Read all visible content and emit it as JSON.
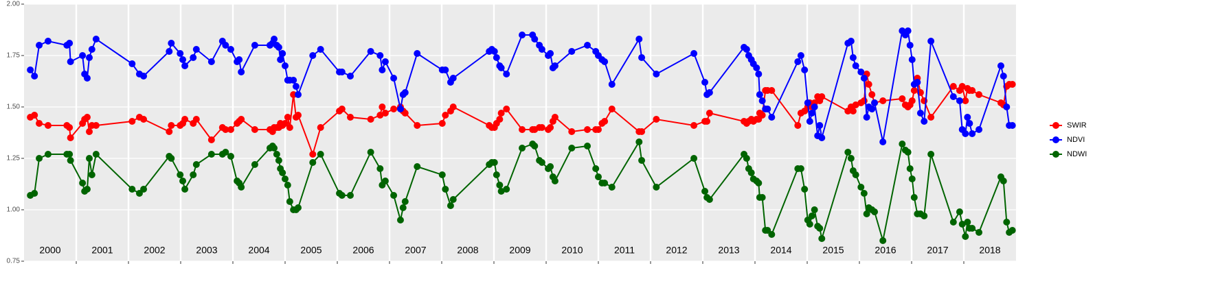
{
  "chart_data": {
    "type": "line",
    "year_labels": [
      "2000",
      "2001",
      "2002",
      "2003",
      "2004",
      "2005",
      "2006",
      "2007",
      "2008",
      "2009",
      "2010",
      "2011",
      "2012",
      "2013",
      "2014",
      "2015",
      "2016",
      "2017",
      "2018"
    ],
    "x": [
      2000.12,
      2000.2,
      2000.29,
      2000.46,
      2000.82,
      2000.87,
      2000.89,
      2001.12,
      2001.16,
      2001.21,
      2001.25,
      2001.3,
      2001.38,
      2002.07,
      2002.21,
      2002.29,
      2002.78,
      2002.82,
      2002.99,
      2003.04,
      2003.08,
      2003.24,
      2003.3,
      2003.59,
      2003.8,
      2003.86,
      2003.96,
      2004.08,
      2004.12,
      2004.16,
      2004.42,
      2004.71,
      2004.76,
      2004.79,
      2004.84,
      2004.88,
      2004.91,
      2004.95,
      2005.0,
      2005.05,
      2005.09,
      2005.16,
      2005.21,
      2005.25,
      2005.53,
      2005.68,
      2006.04,
      2006.09,
      2006.25,
      2006.64,
      2006.82,
      2006.86,
      2006.92,
      2007.08,
      2007.21,
      2007.26,
      2007.3,
      2007.53,
      2008.01,
      2008.07,
      2008.17,
      2008.22,
      2008.91,
      2008.96,
      2009.01,
      2009.05,
      2009.11,
      2009.14,
      2009.24,
      2009.54,
      2009.74,
      2009.78,
      2009.87,
      2009.92,
      2010.04,
      2010.08,
      2010.13,
      2010.17,
      2010.49,
      2010.79,
      2010.95,
      2011.0,
      2011.07,
      2011.12,
      2011.26,
      2011.78,
      2011.83,
      2012.11,
      2012.83,
      2013.04,
      2013.08,
      2013.13,
      2013.79,
      2013.84,
      2013.88,
      2013.93,
      2013.97,
      2014.03,
      2014.07,
      2014.09,
      2014.14,
      2014.2,
      2014.24,
      2014.32,
      2014.82,
      2014.88,
      2014.95,
      2015.01,
      2015.05,
      2015.09,
      2015.14,
      2015.2,
      2015.24,
      2015.28,
      2015.78,
      2015.84,
      2015.88,
      2015.93,
      2016.03,
      2016.09,
      2016.14,
      2016.18,
      2016.24,
      2016.29,
      2016.45,
      2016.82,
      2016.88,
      2016.93,
      2016.97,
      2017.01,
      2017.05,
      2017.11,
      2017.17,
      2017.24,
      2017.37,
      2017.8,
      2017.92,
      2017.97,
      2018.03,
      2018.07,
      2018.11,
      2018.16,
      2018.29,
      2018.71,
      2018.76,
      2018.82,
      2018.87,
      2018.93
    ],
    "series": [
      {
        "name": "SWIR",
        "color": "#ff0000",
        "values": [
          1.45,
          1.46,
          1.42,
          1.41,
          1.41,
          1.4,
          1.35,
          1.42,
          1.44,
          1.45,
          1.38,
          1.41,
          1.41,
          1.43,
          1.45,
          1.44,
          1.38,
          1.41,
          1.41,
          1.42,
          1.44,
          1.42,
          1.44,
          1.34,
          1.4,
          1.39,
          1.39,
          1.42,
          1.43,
          1.44,
          1.39,
          1.39,
          1.38,
          1.4,
          1.4,
          1.4,
          1.42,
          1.41,
          1.42,
          1.45,
          1.4,
          1.56,
          1.45,
          1.46,
          1.27,
          1.4,
          1.48,
          1.49,
          1.45,
          1.44,
          1.46,
          1.5,
          1.47,
          1.49,
          1.5,
          1.48,
          1.47,
          1.41,
          1.42,
          1.46,
          1.48,
          1.5,
          1.41,
          1.4,
          1.4,
          1.42,
          1.44,
          1.47,
          1.49,
          1.39,
          1.39,
          1.39,
          1.4,
          1.4,
          1.39,
          1.4,
          1.43,
          1.45,
          1.38,
          1.39,
          1.39,
          1.39,
          1.42,
          1.43,
          1.49,
          1.38,
          1.38,
          1.44,
          1.41,
          1.43,
          1.43,
          1.47,
          1.43,
          1.42,
          1.43,
          1.44,
          1.43,
          1.44,
          1.44,
          1.47,
          1.46,
          1.58,
          1.58,
          1.58,
          1.41,
          1.47,
          1.48,
          1.5,
          1.52,
          1.5,
          1.52,
          1.55,
          1.53,
          1.55,
          1.48,
          1.5,
          1.48,
          1.51,
          1.52,
          1.53,
          1.66,
          1.61,
          1.56,
          1.52,
          1.53,
          1.54,
          1.51,
          1.5,
          1.51,
          1.53,
          1.58,
          1.64,
          1.57,
          1.53,
          1.45,
          1.6,
          1.58,
          1.6,
          1.53,
          1.59,
          1.58,
          1.58,
          1.56,
          1.52,
          1.51,
          1.6,
          1.61,
          1.61
        ]
      },
      {
        "name": "NDVI",
        "color": "#0000ff",
        "values": [
          1.68,
          1.65,
          1.8,
          1.82,
          1.8,
          1.81,
          1.72,
          1.75,
          1.66,
          1.64,
          1.74,
          1.78,
          1.83,
          1.71,
          1.66,
          1.65,
          1.77,
          1.81,
          1.76,
          1.73,
          1.7,
          1.74,
          1.78,
          1.72,
          1.82,
          1.8,
          1.78,
          1.72,
          1.73,
          1.67,
          1.8,
          1.8,
          1.81,
          1.83,
          1.8,
          1.79,
          1.73,
          1.76,
          1.7,
          1.63,
          1.63,
          1.63,
          1.6,
          1.56,
          1.75,
          1.78,
          1.67,
          1.67,
          1.65,
          1.77,
          1.75,
          1.68,
          1.72,
          1.64,
          1.49,
          1.56,
          1.57,
          1.76,
          1.68,
          1.68,
          1.62,
          1.64,
          1.77,
          1.78,
          1.77,
          1.74,
          1.7,
          1.69,
          1.66,
          1.85,
          1.85,
          1.83,
          1.8,
          1.78,
          1.75,
          1.76,
          1.69,
          1.7,
          1.77,
          1.8,
          1.77,
          1.75,
          1.73,
          1.72,
          1.61,
          1.83,
          1.74,
          1.66,
          1.76,
          1.62,
          1.56,
          1.57,
          1.79,
          1.78,
          1.75,
          1.73,
          1.71,
          1.69,
          1.66,
          1.56,
          1.53,
          1.49,
          1.49,
          1.45,
          1.72,
          1.75,
          1.68,
          1.52,
          1.43,
          1.47,
          1.5,
          1.36,
          1.41,
          1.35,
          1.81,
          1.82,
          1.74,
          1.7,
          1.67,
          1.64,
          1.45,
          1.5,
          1.49,
          1.52,
          1.33,
          1.87,
          1.85,
          1.87,
          1.8,
          1.73,
          1.61,
          1.62,
          1.47,
          1.43,
          1.82,
          1.55,
          1.53,
          1.39,
          1.37,
          1.45,
          1.42,
          1.37,
          1.39,
          1.7,
          1.65,
          1.5,
          1.41,
          1.41
        ]
      },
      {
        "name": "NDWI",
        "color": "#006400",
        "values": [
          1.07,
          1.08,
          1.25,
          1.27,
          1.27,
          1.27,
          1.24,
          1.13,
          1.09,
          1.1,
          1.25,
          1.17,
          1.27,
          1.1,
          1.08,
          1.1,
          1.26,
          1.25,
          1.17,
          1.14,
          1.1,
          1.17,
          1.22,
          1.27,
          1.27,
          1.28,
          1.26,
          1.14,
          1.13,
          1.11,
          1.22,
          1.3,
          1.31,
          1.3,
          1.27,
          1.24,
          1.2,
          1.18,
          1.15,
          1.12,
          1.04,
          1.0,
          1.0,
          1.01,
          1.23,
          1.27,
          1.08,
          1.07,
          1.07,
          1.28,
          1.2,
          1.12,
          1.14,
          1.07,
          0.95,
          1.01,
          1.04,
          1.21,
          1.17,
          1.1,
          1.02,
          1.05,
          1.22,
          1.23,
          1.23,
          1.17,
          1.12,
          1.09,
          1.1,
          1.3,
          1.32,
          1.31,
          1.24,
          1.23,
          1.2,
          1.21,
          1.16,
          1.14,
          1.3,
          1.31,
          1.2,
          1.16,
          1.13,
          1.13,
          1.11,
          1.33,
          1.24,
          1.11,
          1.25,
          1.09,
          1.06,
          1.05,
          1.27,
          1.25,
          1.2,
          1.18,
          1.15,
          1.14,
          1.13,
          1.06,
          1.06,
          0.9,
          0.9,
          0.88,
          1.2,
          1.2,
          1.1,
          0.95,
          0.93,
          0.97,
          1.0,
          0.92,
          0.91,
          0.86,
          1.28,
          1.25,
          1.19,
          1.17,
          1.11,
          1.08,
          0.98,
          1.01,
          1.0,
          0.99,
          0.85,
          1.32,
          1.29,
          1.28,
          1.2,
          1.15,
          1.06,
          0.98,
          0.98,
          0.97,
          1.27,
          0.94,
          0.99,
          0.93,
          0.87,
          0.94,
          0.91,
          0.91,
          0.89,
          1.16,
          1.14,
          0.94,
          0.89,
          0.9
        ]
      }
    ],
    "xlim": [
      2000,
      2019
    ],
    "xticks": [
      2001,
      2002,
      2003,
      2004,
      2005,
      2006,
      2007,
      2008,
      2009,
      2010,
      2011,
      2012,
      2013,
      2014,
      2015,
      2016,
      2017,
      2018
    ],
    "ylim": [
      0.75,
      2
    ],
    "yticks": [
      0.75,
      {
        "value": 1,
        "label": "1.00"
      },
      1.25,
      {
        "value": 1.5,
        "label": "1.50"
      },
      1.75,
      {
        "value": 2,
        "label": "2.00"
      }
    ],
    "grid": true,
    "legend": "right"
  }
}
